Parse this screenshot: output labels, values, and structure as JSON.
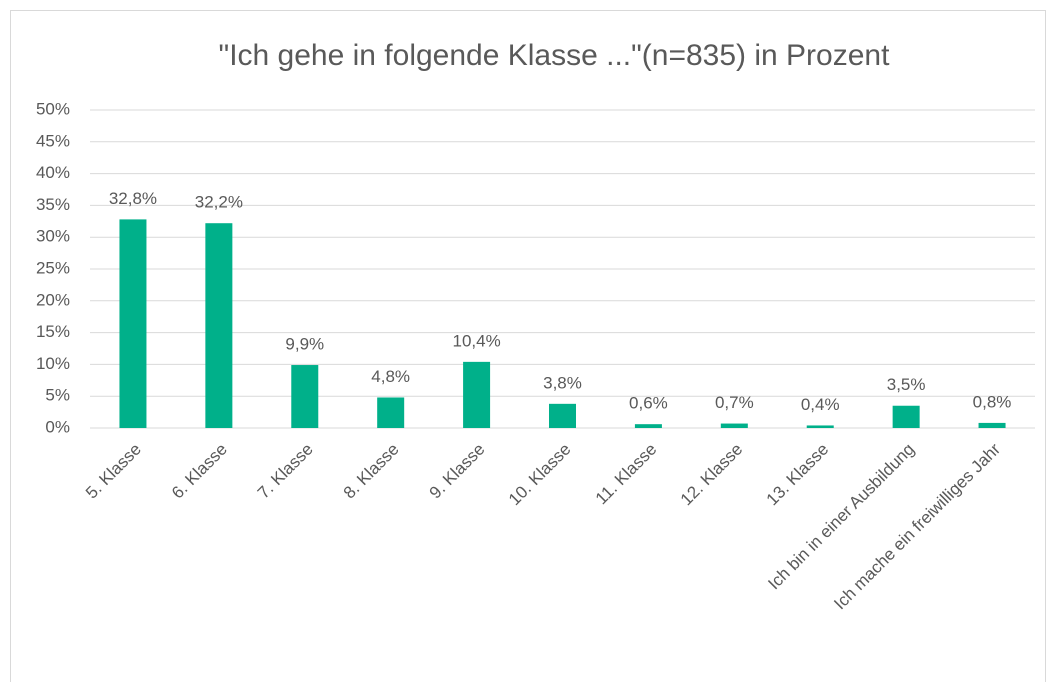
{
  "chart_data": {
    "type": "bar",
    "title": "\"Ich gehe in folgende Klasse ...\"(n=835) in Prozent",
    "categories": [
      "5. Klasse",
      "6. Klasse",
      "7. Klasse",
      "8. Klasse",
      "9. Klasse",
      "10. Klasse",
      "11. Klasse",
      "12. Klasse",
      "13. Klasse",
      "Ich bin in einer Ausbildung",
      "Ich mache ein freiwilliges Jahr"
    ],
    "values": [
      32.8,
      32.2,
      9.9,
      4.8,
      10.4,
      3.8,
      0.6,
      0.7,
      0.4,
      3.5,
      0.8
    ],
    "value_labels": [
      "32,8%",
      "32,2%",
      "9,9%",
      "4,8%",
      "10,4%",
      "3,8%",
      "0,6%",
      "0,7%",
      "0,4%",
      "3,5%",
      "0,8%"
    ],
    "color": "#00b08a",
    "ylim": [
      0,
      50
    ],
    "yticks": [
      {
        "value": 0,
        "label": "0%"
      },
      {
        "value": 5,
        "label": "5%"
      },
      {
        "value": 10,
        "label": "10%"
      },
      {
        "value": 15,
        "label": "15%"
      },
      {
        "value": 20,
        "label": "20%"
      },
      {
        "value": 25,
        "label": "25%"
      },
      {
        "value": 30,
        "label": "30%"
      },
      {
        "value": 35,
        "label": "35%"
      },
      {
        "value": 40,
        "label": "40%"
      },
      {
        "value": 45,
        "label": "45%"
      },
      {
        "value": 50,
        "label": "50%"
      }
    ],
    "grid": true
  }
}
